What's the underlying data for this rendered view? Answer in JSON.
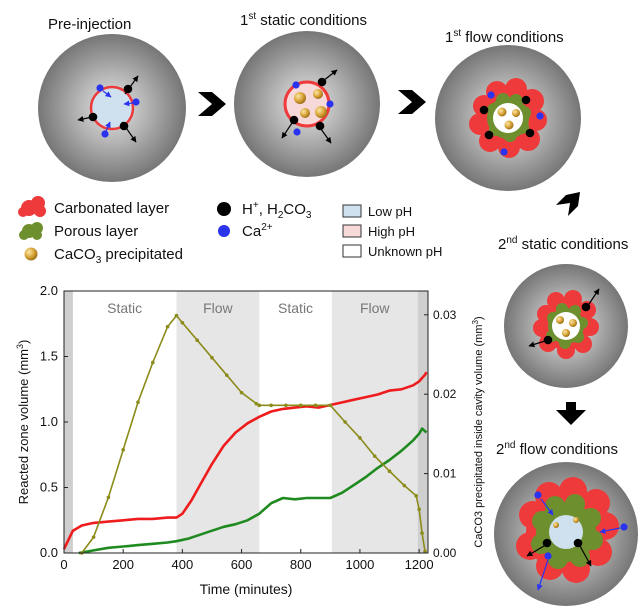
{
  "stages": [
    {
      "title": "Pre-injection"
    },
    {
      "title_pre": "1",
      "title_sup": "st",
      "title_post": " static conditions"
    },
    {
      "title_pre": "1",
      "title_sup": "st",
      "title_post": " flow conditions"
    },
    {
      "title_pre": "2",
      "title_sup": "nd",
      "title_post": " static conditions"
    },
    {
      "title_pre": "2",
      "title_sup": "nd",
      "title_post": " flow conditions"
    }
  ],
  "legend": {
    "carbonated": "Carbonated layer",
    "porous": "Porous layer",
    "caco3_pre": "CaCO",
    "caco3_sub": "3",
    "caco3_post": " precipitated",
    "h_pre": "H",
    "h_sup": "+",
    "h_mid": ", H",
    "h_sub1": "2",
    "h_co": "CO",
    "h_sub2": "3",
    "ca_pre": "Ca",
    "ca_sup": "2+",
    "low_ph": "Low pH",
    "high_ph": "High pH",
    "unknown_ph": "Unknown pH"
  },
  "colors": {
    "carbonated": "#ee3a3a",
    "porous": "#6e8f2e",
    "caco3": "#d9a53a",
    "proton": "#000000",
    "calcium": "#2a33ee",
    "low_ph": "#cfe1ef",
    "high_ph": "#f7d9d9",
    "unknown_ph": "#ffffff",
    "shade": "#e6e6e6",
    "reacted_red": "#ee1c1c",
    "reacted_green": "#1f8a1f",
    "caco3_line": "#8b8b1a"
  },
  "chart_data": {
    "type": "line",
    "xlabel": "Time (minutes)",
    "ylabel": "Reacted zone volume (mm",
    "ylabel_sup": "3",
    "ylabel_post": ")",
    "y2label": "CaCO3 precipitated inside cavity volume (mm",
    "y2label_sup": "3",
    "y2label_post": ")",
    "xlim": [
      0,
      1230
    ],
    "ylim": [
      0,
      2.0
    ],
    "y2lim": [
      0,
      0.033
    ],
    "x_ticks": [
      "0",
      "200",
      "400",
      "600",
      "800",
      "1000",
      "1200"
    ],
    "y_ticks": [
      "0.0",
      "0.5",
      "1.0",
      "1.5",
      "2.0"
    ],
    "y2_ticks": [
      "0.00",
      "0.01",
      "0.02",
      "0.03"
    ],
    "phases": [
      {
        "label": "Static",
        "start": 30,
        "end": 380,
        "shaded": false
      },
      {
        "label": "Flow",
        "start": 380,
        "end": 660,
        "shaded": true
      },
      {
        "label": "Static",
        "start": 660,
        "end": 905,
        "shaded": false
      },
      {
        "label": "Flow",
        "start": 905,
        "end": 1195,
        "shaded": true
      }
    ],
    "series": [
      {
        "axis": "left",
        "x": [
          0,
          15,
          30,
          60,
          100,
          150,
          200,
          250,
          300,
          350,
          380,
          400,
          430,
          460,
          500,
          540,
          580,
          620,
          660,
          700,
          740,
          780,
          820,
          860,
          900,
          940,
          980,
          1020,
          1060,
          1100,
          1140,
          1180,
          1200,
          1220,
          1225
        ],
        "y": [
          0.03,
          0.1,
          0.17,
          0.21,
          0.23,
          0.24,
          0.25,
          0.26,
          0.26,
          0.27,
          0.27,
          0.3,
          0.4,
          0.52,
          0.68,
          0.82,
          0.92,
          0.99,
          1.04,
          1.08,
          1.1,
          1.11,
          1.12,
          1.11,
          1.13,
          1.15,
          1.17,
          1.19,
          1.21,
          1.24,
          1.25,
          1.28,
          1.31,
          1.36,
          1.38
        ]
      },
      {
        "axis": "left",
        "x": [
          50,
          100,
          150,
          200,
          250,
          300,
          350,
          380,
          420,
          460,
          500,
          540,
          580,
          620,
          660,
          700,
          740,
          780,
          820,
          860,
          900,
          940,
          980,
          1020,
          1060,
          1100,
          1140,
          1180,
          1200,
          1210,
          1225
        ],
        "y": [
          0.0,
          0.02,
          0.04,
          0.05,
          0.06,
          0.07,
          0.08,
          0.09,
          0.11,
          0.14,
          0.17,
          0.2,
          0.22,
          0.25,
          0.3,
          0.38,
          0.42,
          0.41,
          0.42,
          0.42,
          0.42,
          0.46,
          0.52,
          0.58,
          0.65,
          0.71,
          0.78,
          0.86,
          0.91,
          0.95,
          0.92
        ]
      },
      {
        "axis": "right",
        "x": [
          60,
          100,
          150,
          200,
          250,
          300,
          350,
          380,
          400,
          450,
          500,
          550,
          600,
          650,
          660,
          700,
          750,
          800,
          850,
          900,
          950,
          1000,
          1050,
          1100,
          1150,
          1190,
          1200,
          1210,
          1220
        ],
        "y": [
          0.0,
          0.002,
          0.007,
          0.013,
          0.019,
          0.024,
          0.0285,
          0.0299,
          0.029,
          0.0268,
          0.0246,
          0.0224,
          0.0202,
          0.0188,
          0.0186,
          0.0186,
          0.0186,
          0.0186,
          0.0186,
          0.0186,
          0.0165,
          0.0145,
          0.0122,
          0.0103,
          0.0085,
          0.0072,
          0.0055,
          0.0025,
          0.0002
        ]
      }
    ]
  }
}
